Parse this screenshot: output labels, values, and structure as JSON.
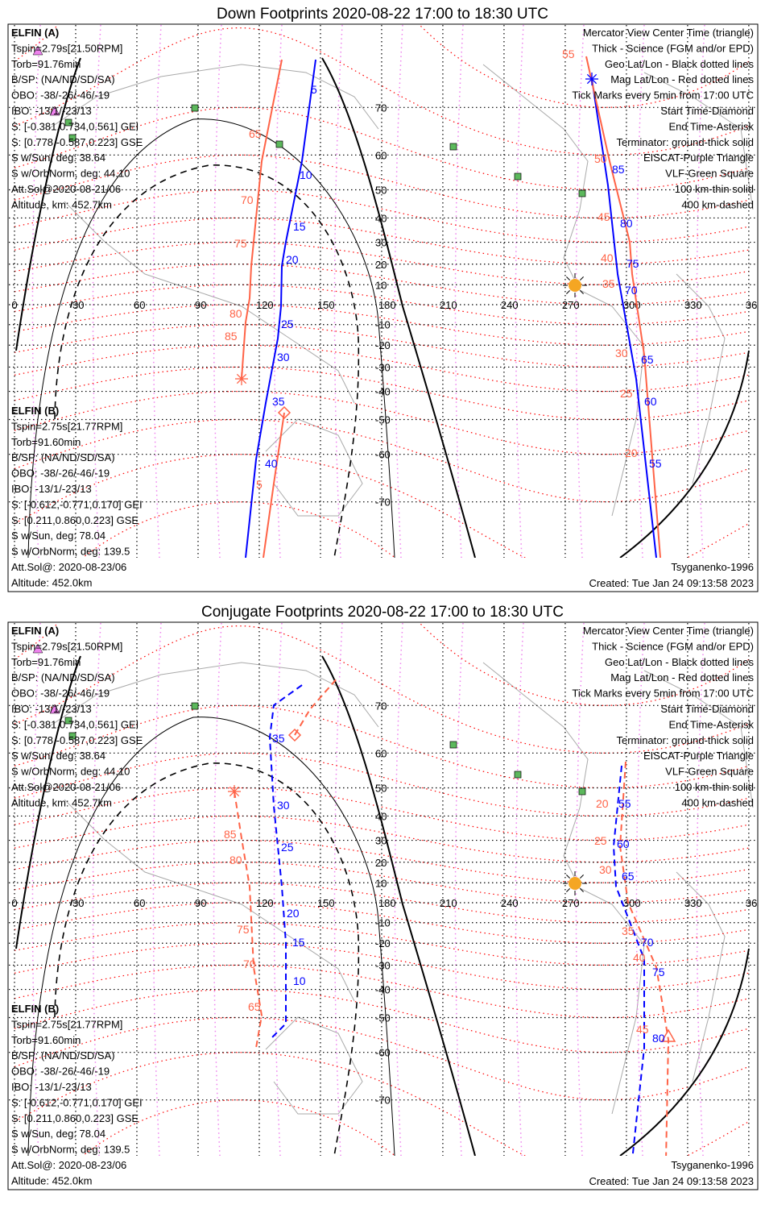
{
  "panels": [
    {
      "title": "Down Footprints 2020-08-22 17:00 to 18:30 UTC",
      "elfin_a": {
        "label": "ELFIN (A)",
        "lines": [
          "Tspin=2.79s[21.50RPM]",
          "Torb=91.76min",
          "B/SP: (NA/ND/SD/SA)",
          "OBO: -38/-26/-46/-19",
          "IBO: -13/1/-23/13",
          "S: [-0.381,0.734,0.561] GEI",
          "S: [0.778,-0.587,0.223] GSE",
          "S w/Sun, deg: 38.64",
          "S w/OrbNorm, deg: 44.10",
          "Att.Sol@2020-08-21/06",
          "Altitude, km: 452.7km"
        ]
      },
      "elfin_b": {
        "label": "ELFIN (B)",
        "lines": [
          "Tspin=2.75s[21.77RPM]",
          "Torb=91.60min",
          "B/SP: (NA/ND/SD/SA)",
          "OBO: -38/-26/-46/-19",
          "IBO: -13/1/-23/13",
          "S: [-0.612,-0.771,0.170] GEI",
          "S: [0.211,0.860,0.223] GSE",
          "S w/Sun, deg: 78.04",
          "S w/OrbNorm, deg: 139.5",
          "Att.Sol@: 2020-08-23/06",
          "Altitude: 452.0km"
        ]
      },
      "legend": [
        "Mercator View Center Time (triangle)",
        "Thick - Science (FGM and/or EPD)",
        "Geo Lat/Lon - Black dotted lines",
        "Mag Lat/Lon - Red dotted lines",
        "Tick Marks every 5min from 17:00 UTC",
        "Start Time-Diamond",
        "End Time-Asterisk",
        "Terminator: ground-thick solid",
        "EISCAT-Purple Triangle",
        "VLF-Green Square",
        "100 km-thin solid",
        "400 km-dashed"
      ],
      "model": "Tsyganenko-1996",
      "created": "Created: Tue Jan 24 09:13:58 2023",
      "ticks": {
        "a_west": [
          "5",
          "10",
          "15",
          "20",
          "25",
          "30",
          "35",
          "40"
        ],
        "b_west": [
          "65",
          "70",
          "75",
          "80",
          "85",
          "5"
        ],
        "a_east": [
          "85",
          "80",
          "75",
          "70",
          "65",
          "60",
          "55"
        ],
        "b_east": [
          "55",
          "50",
          "45",
          "40",
          "35",
          "30",
          "25",
          "20"
        ]
      }
    },
    {
      "title": "Conjugate Footprints 2020-08-22 17:00 to 18:30 UTC",
      "elfin_a": {
        "label": "ELFIN (A)",
        "lines": [
          "Tspin=2.79s[21.50RPM]",
          "Torb=91.76min",
          "B/SP: (NA/ND/SD/SA)",
          "OBO: -38/-26/-46/-19",
          "IBO: -13/1/-23/13",
          "S: [-0.381,0.734,0.561] GEI",
          "S: [0.778,-0.587,0.223] GSE",
          "S w/Sun, deg: 38.64",
          "S w/OrbNorm, deg: 44.10",
          "Att.Sol@2020-08-21/06",
          "Altitude, km: 452.7km"
        ]
      },
      "elfin_b": {
        "label": "ELFIN (B)",
        "lines": [
          "Tspin=2.75s[21.77RPM]",
          "Torb=91.60min",
          "B/SP: (NA/ND/SD/SA)",
          "OBO: -38/-26/-46/-19",
          "IBO: -13/1/-23/13",
          "S: [-0.612,-0.771,0.170] GEI",
          "S: [0.211,0.860,0.223] GSE",
          "S w/Sun, deg: 78.04",
          "S w/OrbNorm, deg: 139.5",
          "Att.Sol@: 2020-08-23/06",
          "Altitude: 452.0km"
        ]
      },
      "legend": [
        "Mercator View Center Time (triangle)",
        "Thick - Science (FGM and/or EPD)",
        "Geo Lat/Lon - Black dotted lines",
        "Mag Lat/Lon - Red dotted lines",
        "Tick Marks every 5min from 17:00 UTC",
        "Start Time-Diamond",
        "End Time-Asterisk",
        "Terminator: ground-thick solid",
        "EISCAT-Purple Triangle",
        "VLF-Green Square",
        "100 km-thin solid",
        "400 km-dashed"
      ],
      "model": "Tsyganenko-1996",
      "created": "Created: Tue Jan 24 09:13:58 2023",
      "ticks": {
        "a_west": [
          "35",
          "30",
          "25",
          "20",
          "15",
          "10"
        ],
        "b_west": [
          "85",
          "80",
          "75",
          "70",
          "65"
        ],
        "a_east": [
          "55",
          "60",
          "65",
          "70",
          "75",
          "80"
        ],
        "b_east": [
          "20",
          "25",
          "30",
          "35",
          "40",
          "45"
        ]
      }
    }
  ],
  "lon_labels": [
    "0",
    "30",
    "60",
    "90",
    "120",
    "150",
    "180",
    "210",
    "240",
    "270",
    "300",
    "330",
    "360"
  ],
  "lat_labels": [
    "70",
    "60",
    "50",
    "40",
    "30",
    "20",
    "10",
    "-10",
    "-20",
    "-30",
    "-40",
    "-50",
    "-60",
    "-70"
  ],
  "colors": {
    "elfin_a": "#0000ff",
    "elfin_b": "#ff6347",
    "mag_grid": "#ff0000",
    "mag_lon": "#ee82ee",
    "geo_grid": "#000000",
    "eiscat": "#ee82ee",
    "vlf": "#5cb85c",
    "sun": "#f5a623",
    "coast": "#aaaaaa"
  }
}
